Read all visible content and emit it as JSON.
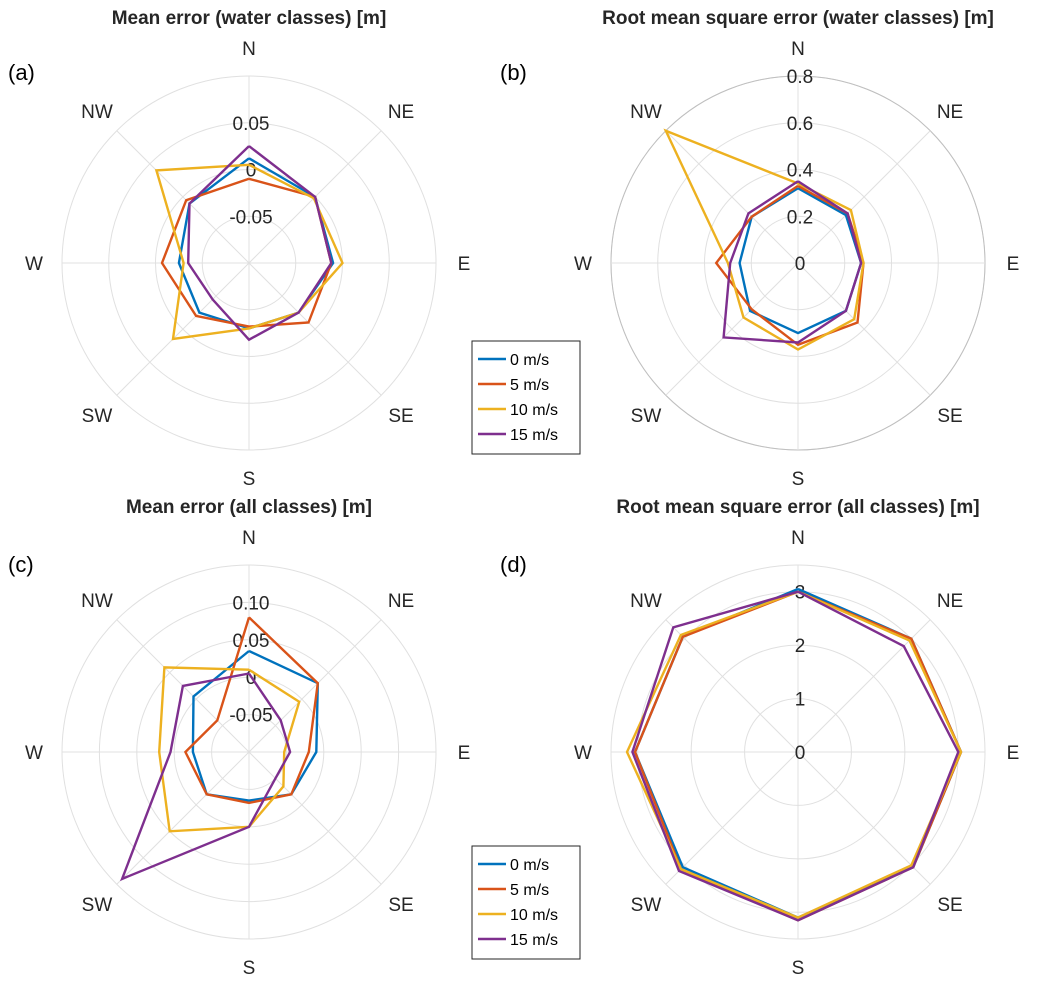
{
  "directions": [
    "N",
    "NE",
    "E",
    "SE",
    "S",
    "SW",
    "W",
    "NW"
  ],
  "legend": {
    "entries": [
      "0 m/s",
      "5 m/s",
      "10 m/s",
      "15 m/s"
    ]
  },
  "colors": {
    "series": [
      "#0072BD",
      "#D95319",
      "#EDB120",
      "#7E2F8E"
    ],
    "grid": "#e0e0e0",
    "outer_circle": "#bfbfbf",
    "text": "#262626"
  },
  "chart_data": [
    {
      "id": "a",
      "panel_label": "(a)",
      "type": "polar-line",
      "title": "Mean error (water classes) [m]",
      "r_range": [
        -0.1,
        0.1
      ],
      "r_ticks": [
        -0.05,
        0,
        0.05
      ],
      "r_tick_labels": [
        "-0.05",
        "0",
        "0.05"
      ],
      "grid": true,
      "categories": [
        "N",
        "NE",
        "E",
        "SE",
        "S",
        "SW",
        "W",
        "NW"
      ],
      "series": [
        {
          "name": "0 m/s",
          "values": [
            0.012,
            0.0,
            -0.01,
            -0.025,
            -0.03,
            -0.025,
            -0.025,
            -0.01
          ]
        },
        {
          "name": "5 m/s",
          "values": [
            -0.01,
            0.0,
            -0.012,
            -0.01,
            -0.032,
            -0.02,
            -0.007,
            -0.005
          ]
        },
        {
          "name": "10 m/s",
          "values": [
            0.005,
            -0.002,
            0.0,
            -0.025,
            -0.03,
            0.015,
            -0.03,
            0.04
          ]
        },
        {
          "name": "15 m/s",
          "values": [
            0.025,
            0.0,
            -0.012,
            -0.025,
            -0.018,
            -0.045,
            -0.035,
            -0.01
          ]
        }
      ]
    },
    {
      "id": "b",
      "panel_label": "(b)",
      "type": "polar-line",
      "title": "Root mean square error (water classes) [m]",
      "r_range": [
        0,
        0.8
      ],
      "r_ticks": [
        0,
        0.2,
        0.4,
        0.6,
        0.8
      ],
      "r_tick_labels": [
        "0",
        "0.2",
        "0.4",
        "0.6",
        "0.8"
      ],
      "grid": true,
      "categories": [
        "N",
        "NE",
        "E",
        "SE",
        "S",
        "SW",
        "W",
        "NW"
      ],
      "series": [
        {
          "name": "0 m/s",
          "values": [
            0.32,
            0.29,
            0.27,
            0.29,
            0.3,
            0.29,
            0.25,
            0.28
          ]
        },
        {
          "name": "5 m/s",
          "values": [
            0.33,
            0.3,
            0.28,
            0.36,
            0.35,
            0.28,
            0.35,
            0.28
          ]
        },
        {
          "name": "10 m/s",
          "values": [
            0.34,
            0.32,
            0.28,
            0.34,
            0.37,
            0.33,
            0.3,
            0.8
          ]
        },
        {
          "name": "15 m/s",
          "values": [
            0.35,
            0.3,
            0.27,
            0.29,
            0.34,
            0.45,
            0.29,
            0.3
          ]
        }
      ]
    },
    {
      "id": "c",
      "panel_label": "(c)",
      "type": "polar-line",
      "title": "Mean error (all classes) [m]",
      "r_range": [
        -0.1,
        0.15
      ],
      "r_ticks": [
        -0.05,
        0,
        0.05,
        0.1
      ],
      "r_tick_labels": [
        "-0.05",
        "0",
        "0.05",
        "0.10"
      ],
      "grid": true,
      "categories": [
        "N",
        "NE",
        "E",
        "SE",
        "S",
        "SW",
        "W",
        "NW"
      ],
      "series": [
        {
          "name": "0 m/s",
          "values": [
            0.035,
            0.03,
            -0.01,
            -0.02,
            -0.035,
            -0.02,
            -0.025,
            0.005
          ]
        },
        {
          "name": "5 m/s",
          "values": [
            0.08,
            0.03,
            -0.02,
            -0.02,
            -0.032,
            -0.02,
            -0.015,
            -0.04
          ]
        },
        {
          "name": "10 m/s",
          "values": [
            0.01,
            -0.005,
            -0.053,
            -0.035,
            0.0,
            0.05,
            0.02,
            0.06
          ]
        },
        {
          "name": "15 m/s",
          "values": [
            0.005,
            -0.04,
            -0.045,
            -0.05,
            0.0,
            0.14,
            0.005,
            0.025
          ]
        }
      ]
    },
    {
      "id": "d",
      "panel_label": "(d)",
      "type": "polar-line",
      "title": "Root mean square error (all classes) [m]",
      "r_range": [
        0,
        3.5
      ],
      "r_ticks": [
        0,
        1,
        2,
        3
      ],
      "r_tick_labels": [
        "0",
        "1",
        "2",
        "3"
      ],
      "grid": true,
      "categories": [
        "N",
        "NE",
        "E",
        "SE",
        "S",
        "SW",
        "W",
        "NW"
      ],
      "series": [
        {
          "name": "0 m/s",
          "values": [
            3.05,
            3.0,
            3.05,
            3.05,
            3.1,
            3.05,
            3.05,
            3.05
          ]
        },
        {
          "name": "5 m/s",
          "values": [
            3.0,
            3.0,
            3.05,
            3.05,
            3.15,
            3.1,
            3.05,
            3.05
          ]
        },
        {
          "name": "10 m/s",
          "values": [
            3.0,
            2.95,
            3.05,
            3.0,
            3.1,
            3.1,
            3.2,
            3.1
          ]
        },
        {
          "name": "15 m/s",
          "values": [
            3.0,
            2.8,
            3.0,
            3.05,
            3.15,
            3.15,
            3.1,
            3.3
          ]
        }
      ]
    }
  ]
}
